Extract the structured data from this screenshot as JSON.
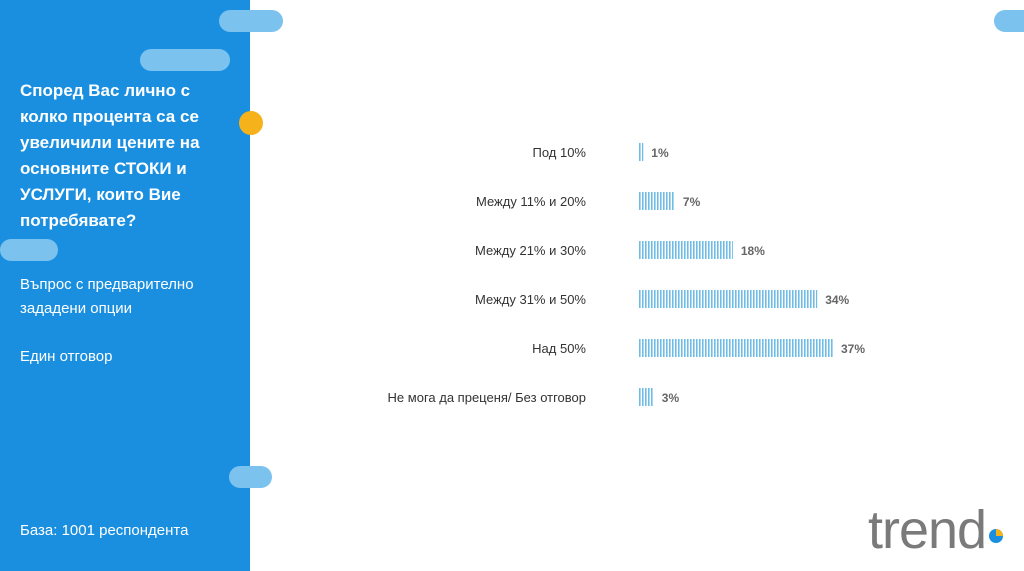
{
  "sidebar": {
    "question": "Според Вас лично с колко процента са се увеличили цените на основните СТОКИ и УСЛУГИ, които Вие потребявате?",
    "question_type": "Въпрос с предварително зададени опции",
    "answer_type": "Един отговор",
    "base": "База:  1001 респондента"
  },
  "logo": {
    "text": "trend"
  },
  "colors": {
    "sidebar": "#1a8fe0",
    "accent_pill": "#7cc2ee",
    "accent_dot": "#f5b21b",
    "bar": "#6fbde6",
    "logo": "#7a7a7a"
  },
  "chart_data": {
    "type": "bar",
    "orientation": "horizontal",
    "categories": [
      "Под 10%",
      "Между 11% и 20%",
      "Между 21% и 30%",
      "Между 31% и 50%",
      "Над 50%",
      "Не мога да преценя/ Без отговор"
    ],
    "values": [
      1,
      7,
      18,
      34,
      37,
      3
    ],
    "value_labels": [
      "1%",
      "7%",
      "18%",
      "34%",
      "37%",
      "3%"
    ],
    "unit": "%",
    "grid": false,
    "legend": "none"
  }
}
